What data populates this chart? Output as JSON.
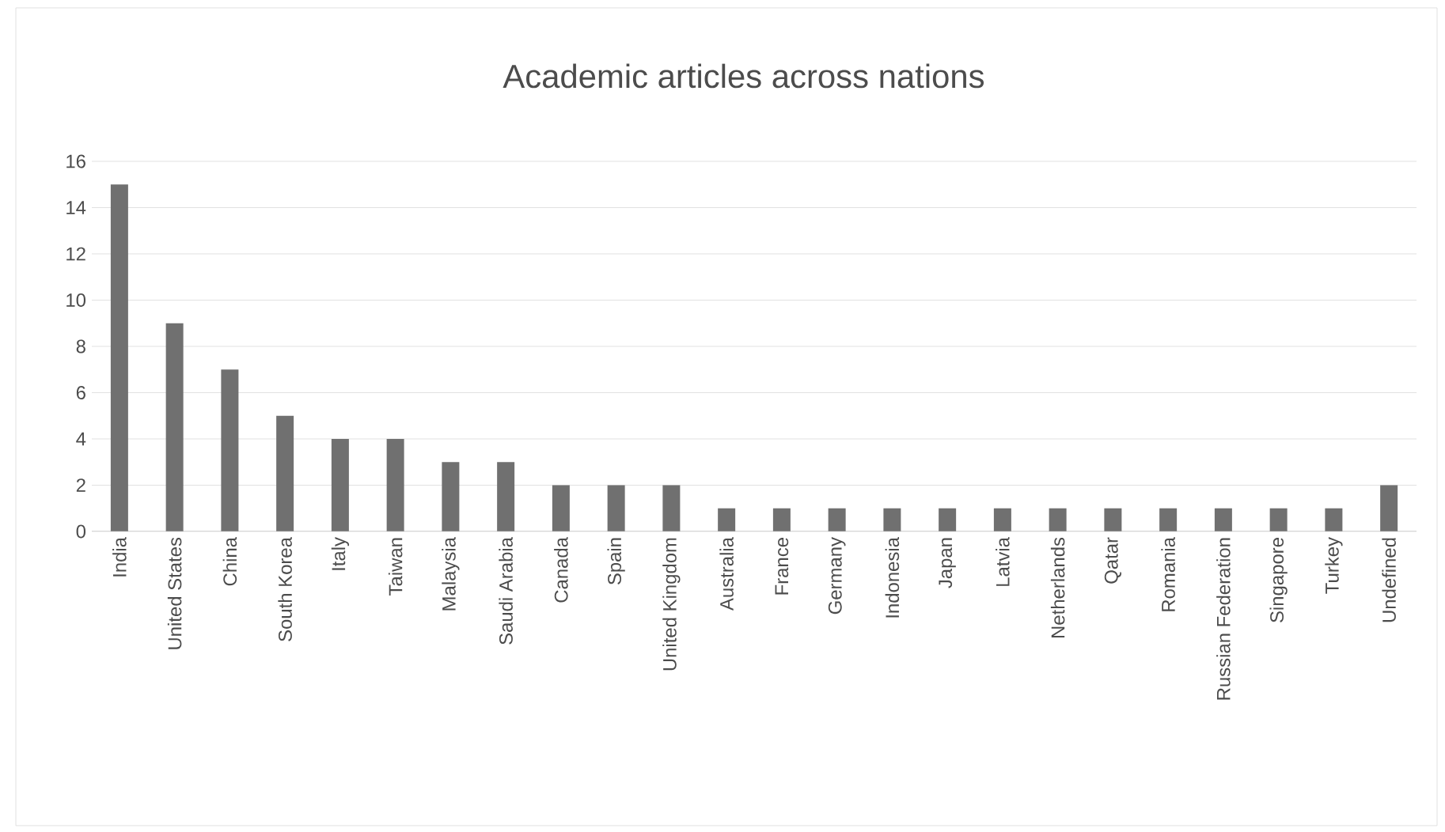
{
  "chart_data": {
    "type": "bar",
    "title": "Academic articles across nations",
    "categories": [
      "India",
      "United States",
      "China",
      "South Korea",
      "Italy",
      "Taiwan",
      "Malaysia",
      "Saudi Arabia",
      "Canada",
      "Spain",
      "United Kingdom",
      "Australia",
      "France",
      "Germany",
      "Indonesia",
      "Japan",
      "Latvia",
      "Netherlands",
      "Qatar",
      "Romania",
      "Russian Federation",
      "Singapore",
      "Turkey",
      "Undefined"
    ],
    "values": [
      15,
      9,
      7,
      5,
      4,
      4,
      3,
      3,
      2,
      2,
      2,
      1,
      1,
      1,
      1,
      1,
      1,
      1,
      1,
      1,
      1,
      1,
      1,
      2
    ],
    "color": "#707070",
    "ylim": [
      0,
      16
    ],
    "yticks": [
      0,
      2,
      4,
      6,
      8,
      10,
      12,
      14,
      16
    ],
    "grid": "y"
  }
}
